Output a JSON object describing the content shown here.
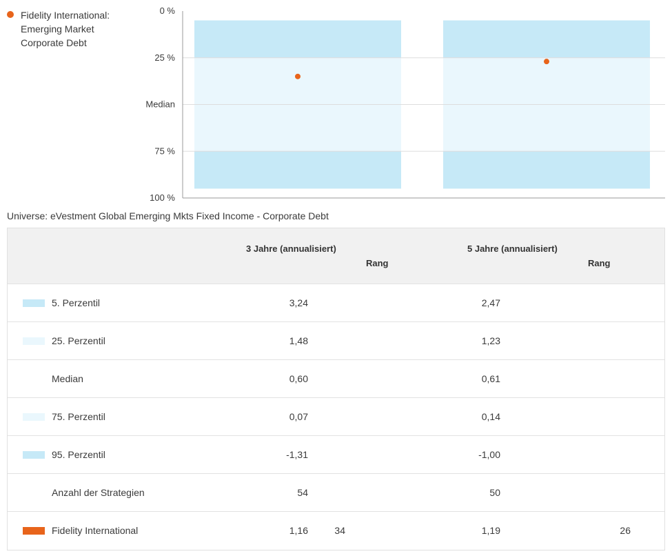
{
  "legend": {
    "label": "Fidelity International: Emerging Market Corporate Debt",
    "color": "#e8641b"
  },
  "universe": "Universe: eVestment Global Emerging Mkts Fixed Income - Corporate Debt",
  "chart_data": {
    "type": "box",
    "title": "",
    "y_axis": {
      "inverted": true,
      "range": [
        0,
        100
      ],
      "ticks": [
        {
          "value": 0,
          "label": "0 %"
        },
        {
          "value": 25,
          "label": "25 %"
        },
        {
          "value": 50,
          "label": "Median"
        },
        {
          "value": 75,
          "label": "75 %"
        },
        {
          "value": 100,
          "label": "100 %"
        }
      ]
    },
    "series": [
      {
        "name": "3 Jahre (annualisiert)",
        "bands": {
          "p5": 5,
          "p25": 25,
          "p75": 75,
          "p95": 95
        },
        "fund_percentile": 35
      },
      {
        "name": "5 Jahre (annualisiert)",
        "bands": {
          "p5": 5,
          "p25": 25,
          "p75": 75,
          "p95": 95
        },
        "fund_percentile": 27
      }
    ],
    "colors": {
      "outer_band": "#c6e9f7",
      "inner_band": "#eaf7fd",
      "fund": "#e8641b",
      "grid": "#dddddd",
      "axis": "#9a9a9a"
    }
  },
  "table": {
    "headers": {
      "period_3": "3 Jahre (annualisiert)",
      "period_5": "5 Jahre (annualisiert)",
      "rank_3": "Rang",
      "rank_5": "Rang"
    },
    "rows": [
      {
        "label": "5. Perzentil",
        "swatch": "#c6e9f7",
        "v3": "3,24",
        "r3": "",
        "v5": "2,47",
        "r5": ""
      },
      {
        "label": "25. Perzentil",
        "swatch": "#eaf7fd",
        "v3": "1,48",
        "r3": "",
        "v5": "1,23",
        "r5": ""
      },
      {
        "label": "Median",
        "swatch": "",
        "v3": "0,60",
        "r3": "",
        "v5": "0,61",
        "r5": ""
      },
      {
        "label": "75. Perzentil",
        "swatch": "#eaf7fd",
        "v3": "0,07",
        "r3": "",
        "v5": "0,14",
        "r5": ""
      },
      {
        "label": "95. Perzentil",
        "swatch": "#c6e9f7",
        "v3": "-1,31",
        "r3": "",
        "v5": "-1,00",
        "r5": ""
      },
      {
        "label": "Anzahl der Strategien",
        "swatch": "",
        "v3": "54",
        "r3": "",
        "v5": "50",
        "r5": ""
      },
      {
        "label": "Fidelity International",
        "swatch": "#e8641b",
        "v3": "1,16",
        "r3": "34",
        "v5": "1,19",
        "r5": "26"
      }
    ]
  }
}
